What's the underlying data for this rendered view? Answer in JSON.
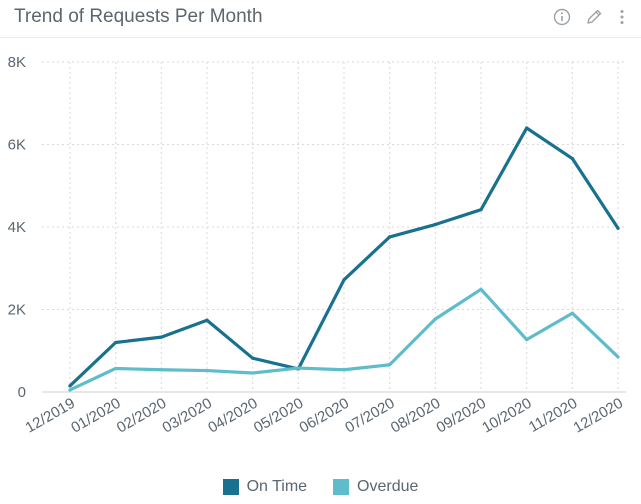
{
  "widget": {
    "title": "Trend of Requests Per Month",
    "info_icon": "info-icon",
    "edit_icon": "pencil-icon",
    "menu_icon": "kebab-menu-icon"
  },
  "colors": {
    "on_time": "#17718f",
    "overdue": "#5fbcca",
    "grid": "#d9d9d9",
    "text": "#5b6670"
  },
  "chart_data": {
    "type": "line",
    "title": "Trend of Requests Per Month",
    "xlabel": "",
    "ylabel": "",
    "categories": [
      "12/2019",
      "01/2020",
      "02/2020",
      "03/2020",
      "04/2020",
      "05/2020",
      "06/2020",
      "07/2020",
      "08/2020",
      "09/2020",
      "10/2020",
      "11/2020",
      "12/2020"
    ],
    "ylim": [
      0,
      8000
    ],
    "yticks": [
      0,
      2000,
      4000,
      6000,
      8000
    ],
    "ytick_labels": [
      "0",
      "2K",
      "4K",
      "6K",
      "8K"
    ],
    "grid": true,
    "legend_position": "bottom",
    "series": [
      {
        "name": "On Time",
        "color": "#17718f",
        "values": [
          150,
          1200,
          1330,
          1740,
          820,
          560,
          2720,
          3760,
          4060,
          4420,
          6400,
          5660,
          3970
        ]
      },
      {
        "name": "Overdue",
        "color": "#5fbcca",
        "values": [
          50,
          570,
          540,
          520,
          460,
          580,
          540,
          660,
          1770,
          2490,
          1270,
          1910,
          850
        ]
      }
    ]
  }
}
